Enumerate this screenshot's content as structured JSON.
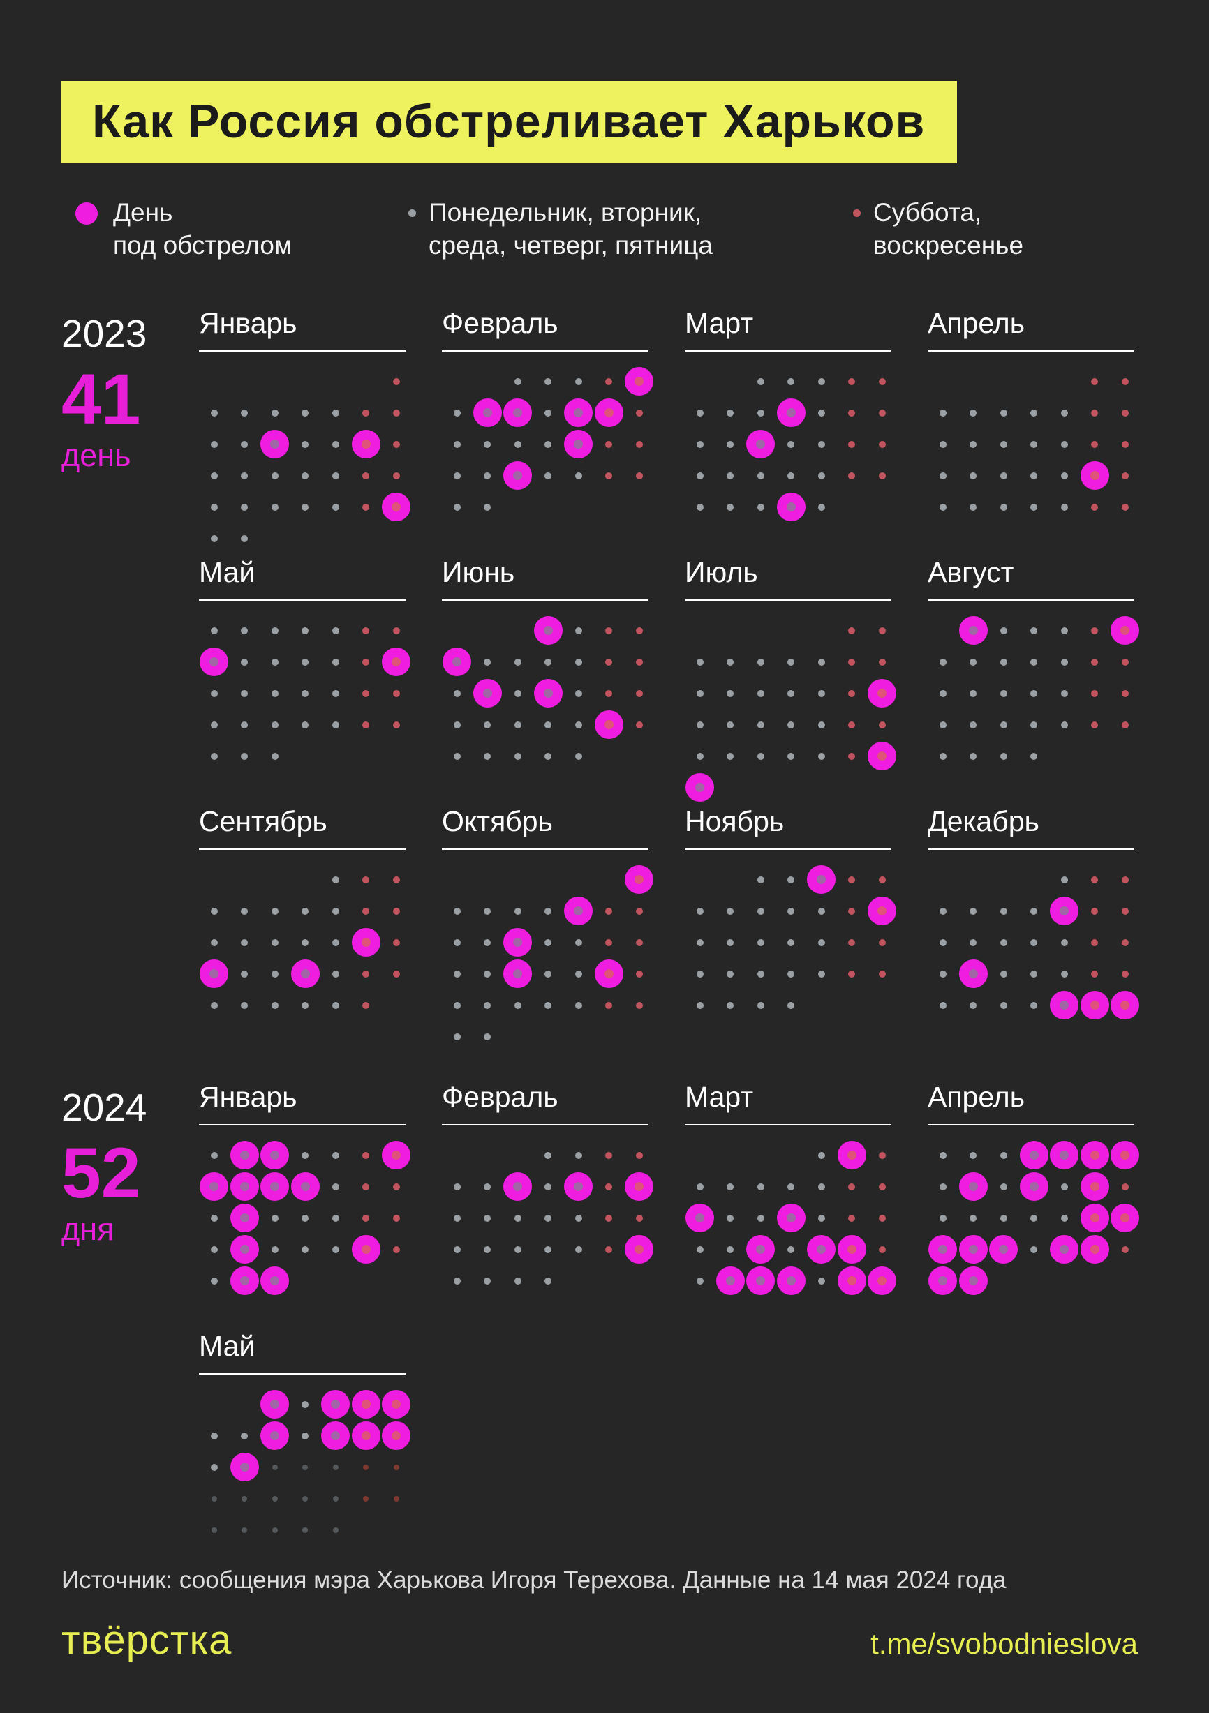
{
  "title": "Как Россия обстреливает Харьков",
  "legend": {
    "shelled": {
      "lines": [
        "День",
        "под обстрелом"
      ]
    },
    "weekday": {
      "lines": [
        "Понедельник, вторник,",
        "среда, четверг, пятница"
      ]
    },
    "weekend": {
      "lines": [
        "Суббота,",
        "воскресенье"
      ]
    }
  },
  "colors": {
    "background": "#262626",
    "accent_yellow": "#eef25e",
    "shelled_magenta": "#ee1ddf",
    "weekday_gray": "#9ba0a4",
    "weekend_red": "#c2545f",
    "future_weekday_gray": "#55585a",
    "future_weekend_red": "#7d3930"
  },
  "chart_data": {
    "type": "heatmap",
    "title": "Как Россия обстреливает Харьков",
    "description_legend": [
      "День под обстрелом",
      "Понедельник, вторник, среда, четверг, пятница",
      "Суббота, воскресенье"
    ],
    "week_starts_monday": true,
    "years": [
      {
        "year": "2023",
        "count": "41",
        "unit": "день",
        "months": [
          {
            "name": "Январь",
            "start": 6,
            "days": 31,
            "shelled": [
              11,
              14,
              29
            ]
          },
          {
            "name": "Февраль",
            "start": 2,
            "days": 28,
            "shelled": [
              5,
              7,
              8,
              10,
              11,
              17,
              22
            ]
          },
          {
            "name": "Март",
            "start": 2,
            "days": 31,
            "shelled": [
              9,
              15,
              30
            ]
          },
          {
            "name": "Апрель",
            "start": 5,
            "days": 30,
            "shelled": [
              22
            ]
          },
          {
            "name": "Май",
            "start": 0,
            "days": 31,
            "shelled": [
              8,
              14
            ]
          },
          {
            "name": "Июнь",
            "start": 3,
            "days": 30,
            "shelled": [
              1,
              5,
              13,
              15,
              24
            ]
          },
          {
            "name": "Июль",
            "start": 5,
            "days": 31,
            "shelled": [
              16,
              30,
              31
            ]
          },
          {
            "name": "Август",
            "start": 1,
            "days": 31,
            "shelled": [
              1,
              6
            ]
          },
          {
            "name": "Сентябрь",
            "start": 4,
            "days": 30,
            "shelled": [
              16,
              18,
              21
            ]
          },
          {
            "name": "Октябрь",
            "start": 6,
            "days": 31,
            "shelled": [
              1,
              6,
              11,
              18,
              21
            ]
          },
          {
            "name": "Ноябрь",
            "start": 2,
            "days": 30,
            "shelled": [
              3,
              12
            ]
          },
          {
            "name": "Декабрь",
            "start": 4,
            "days": 31,
            "shelled": [
              8,
              19,
              29,
              30,
              31
            ]
          }
        ]
      },
      {
        "year": "2024",
        "count": "52",
        "unit": "дня",
        "months": [
          {
            "name": "Январь",
            "start": 0,
            "days": 31,
            "shelled": [
              2,
              3,
              7,
              8,
              9,
              10,
              11,
              16,
              23,
              27,
              30,
              31
            ]
          },
          {
            "name": "Февраль",
            "start": 3,
            "days": 29,
            "shelled": [
              7,
              9,
              11,
              25
            ]
          },
          {
            "name": "Март",
            "start": 4,
            "days": 31,
            "shelled": [
              2,
              11,
              14,
              20,
              22,
              23,
              26,
              27,
              28,
              30,
              31
            ]
          },
          {
            "name": "Апрель",
            "start": 0,
            "days": 30,
            "shelled": [
              4,
              5,
              6,
              7,
              9,
              11,
              13,
              20,
              21,
              22,
              23,
              24,
              26,
              27,
              29,
              30
            ]
          },
          {
            "name": "Май",
            "start": 2,
            "days": 31,
            "shelled": [
              1,
              3,
              4,
              5,
              8,
              10,
              11,
              12,
              14
            ],
            "future_from": 15
          }
        ]
      }
    ]
  },
  "footer": {
    "source": "Источник: сообщения мэра Харькова Игоря Терехова. Данные на 14 мая 2024 года",
    "logo": "твёрстка",
    "link": "t.me/svobodnieslova"
  }
}
